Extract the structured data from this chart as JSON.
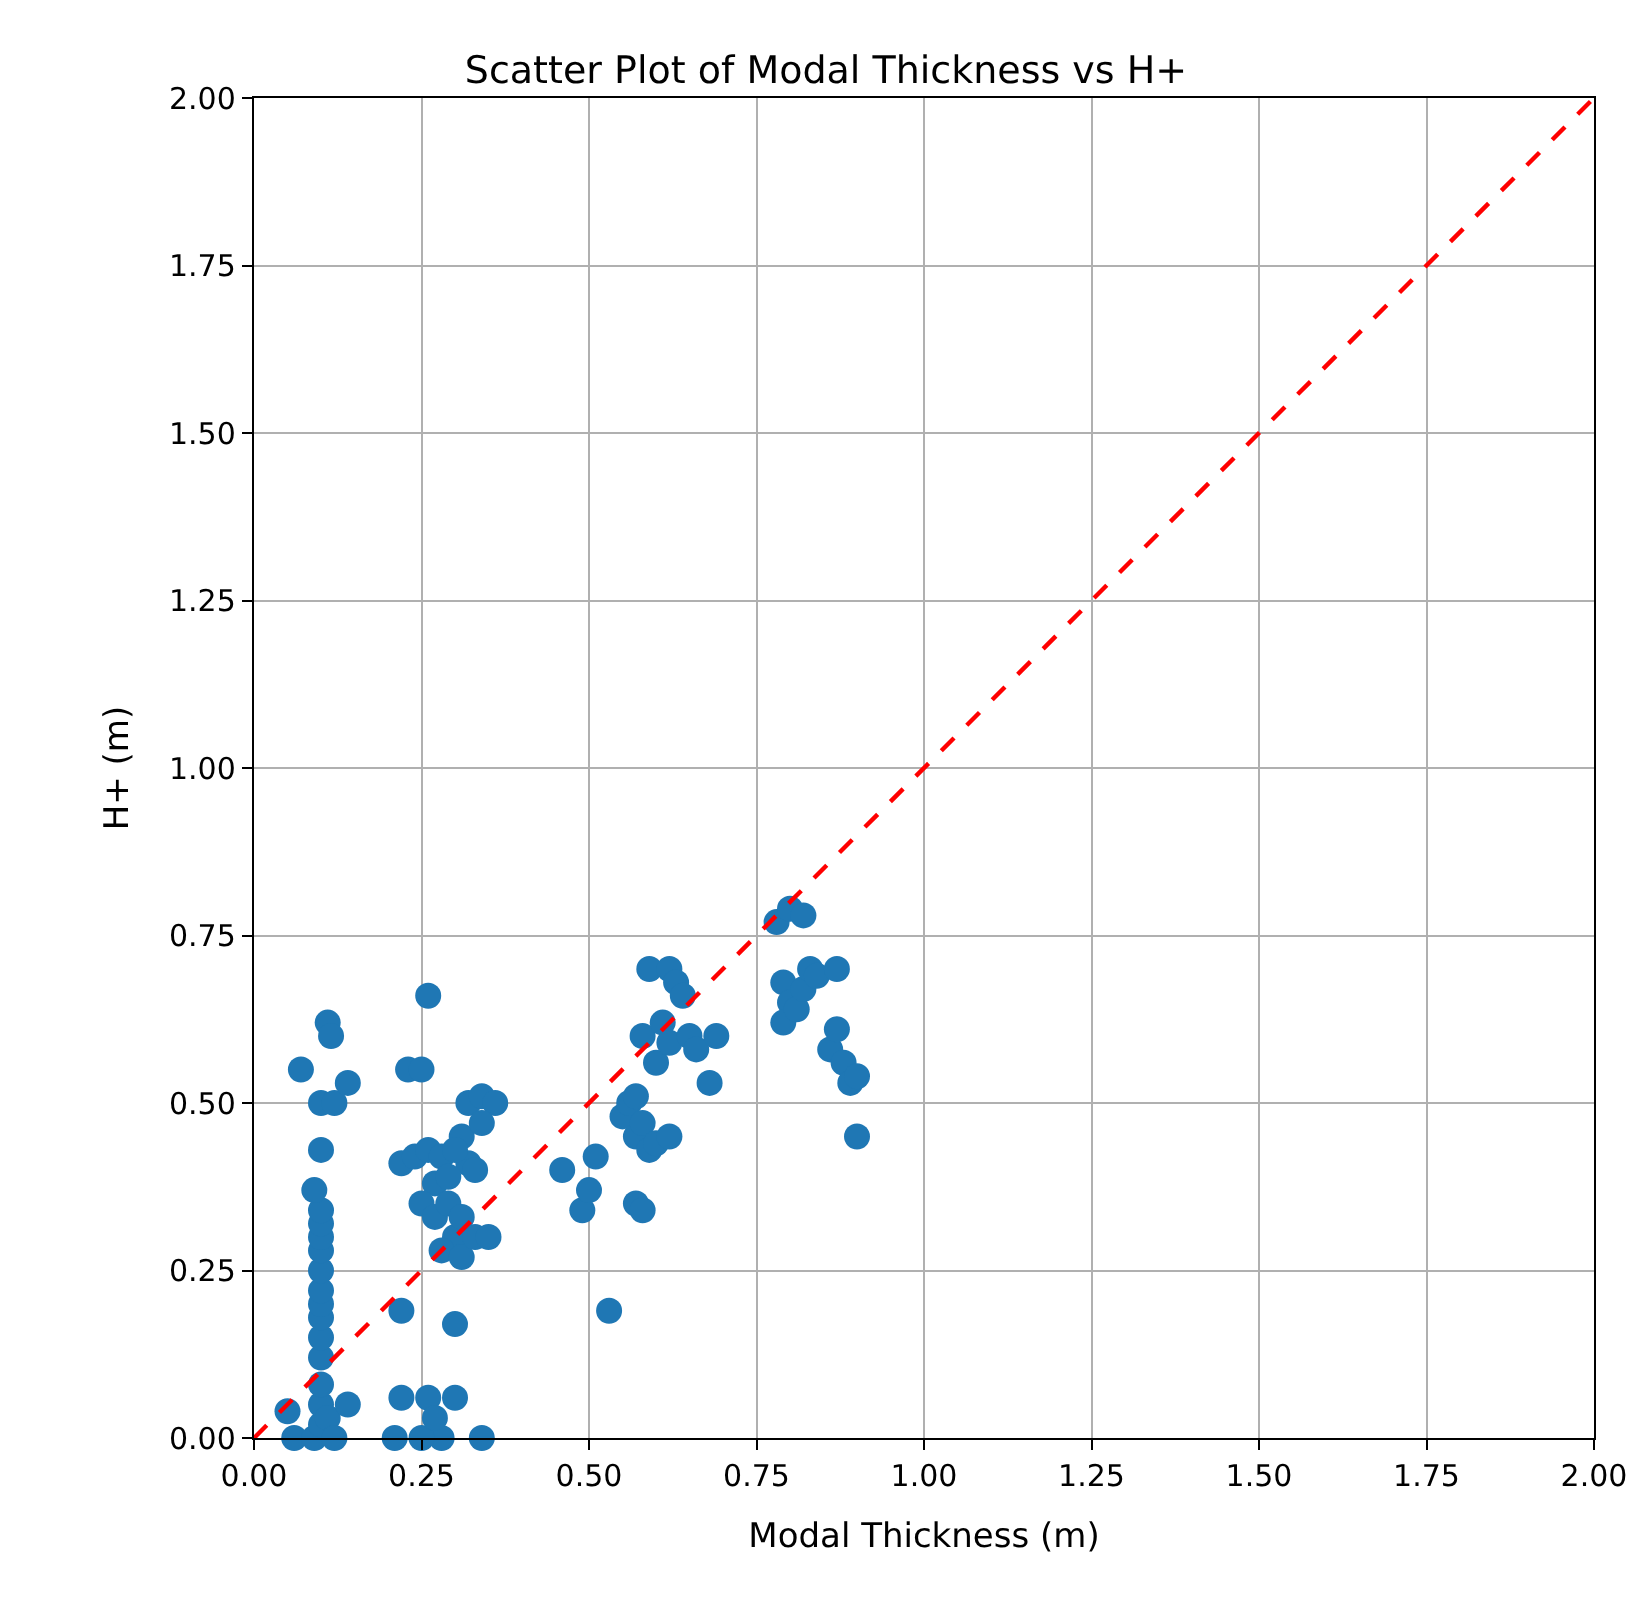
{
  "chart_data": {
    "type": "scatter",
    "title": "Scatter Plot of Modal Thickness vs H+",
    "xlabel": "Modal Thickness (m)",
    "ylabel": "H+ (m)",
    "xlim": [
      0,
      2
    ],
    "ylim": [
      0,
      2
    ],
    "xticks": [
      {
        "value": 0,
        "label": "0.00"
      },
      {
        "value": 0.25,
        "label": "0.25"
      },
      {
        "value": 0.5,
        "label": "0.50"
      },
      {
        "value": 0.75,
        "label": "0.75"
      },
      {
        "value": 1,
        "label": "1.00"
      },
      {
        "value": 1.25,
        "label": "1.25"
      },
      {
        "value": 1.5,
        "label": "1.50"
      },
      {
        "value": 1.75,
        "label": "1.75"
      },
      {
        "value": 2,
        "label": "2.00"
      }
    ],
    "yticks": [
      {
        "value": 0,
        "label": "0.00"
      },
      {
        "value": 0.25,
        "label": "0.25"
      },
      {
        "value": 0.5,
        "label": "0.50"
      },
      {
        "value": 0.75,
        "label": "0.75"
      },
      {
        "value": 1,
        "label": "1.00"
      },
      {
        "value": 1.25,
        "label": "1.25"
      },
      {
        "value": 1.5,
        "label": "1.50"
      },
      {
        "value": 1.75,
        "label": "1.75"
      },
      {
        "value": 2,
        "label": "2.00"
      }
    ],
    "grid": true,
    "marker": "circle",
    "series": [
      {
        "color": "#1f77b4",
        "x": [
          0.05,
          0.07,
          0.06,
          0.09,
          0.1,
          0.1,
          0.11,
          0.12,
          0.14,
          0.1,
          0.1,
          0.1,
          0.1,
          0.1,
          0.1,
          0.1,
          0.1,
          0.1,
          0.1,
          0.1,
          0.09,
          0.1,
          0.1,
          0.12,
          0.11,
          0.115,
          0.14,
          0.22,
          0.22,
          0.23,
          0.25,
          0.26,
          0.24,
          0.26,
          0.27,
          0.28,
          0.25,
          0.27,
          0.29,
          0.3,
          0.28,
          0.31,
          0.33,
          0.35,
          0.3,
          0.31,
          0.32,
          0.33,
          0.32,
          0.34,
          0.36,
          0.34,
          0.3,
          0.29,
          0.31,
          0.22,
          0.26,
          0.3,
          0.28,
          0.25,
          0.21,
          0.27,
          0.34,
          0.46,
          0.49,
          0.5,
          0.51,
          0.53,
          0.55,
          0.56,
          0.57,
          0.58,
          0.57,
          0.58,
          0.59,
          0.6,
          0.62,
          0.58,
          0.6,
          0.61,
          0.62,
          0.59,
          0.62,
          0.63,
          0.64,
          0.65,
          0.66,
          0.68,
          0.69,
          0.57,
          0.78,
          0.8,
          0.82,
          0.79,
          0.8,
          0.79,
          0.81,
          0.82,
          0.83,
          0.84,
          0.86,
          0.87,
          0.87,
          0.88,
          0.89,
          0.9,
          0.9
        ],
        "values": [
          0.04,
          0.55,
          0.0,
          0.0,
          0.02,
          0.05,
          0.03,
          0.0,
          0.05,
          0.08,
          0.12,
          0.15,
          0.18,
          0.2,
          0.22,
          0.25,
          0.28,
          0.3,
          0.32,
          0.34,
          0.37,
          0.43,
          0.5,
          0.5,
          0.62,
          0.6,
          0.53,
          0.19,
          0.41,
          0.55,
          0.55,
          0.66,
          0.42,
          0.43,
          0.38,
          0.42,
          0.35,
          0.33,
          0.35,
          0.3,
          0.28,
          0.27,
          0.3,
          0.3,
          0.17,
          0.45,
          0.41,
          0.4,
          0.5,
          0.51,
          0.5,
          0.47,
          0.43,
          0.39,
          0.33,
          0.06,
          0.06,
          0.06,
          0.0,
          0.0,
          0.0,
          0.03,
          0.0,
          0.4,
          0.34,
          0.37,
          0.42,
          0.19,
          0.48,
          0.5,
          0.45,
          0.47,
          0.35,
          0.34,
          0.43,
          0.44,
          0.45,
          0.6,
          0.56,
          0.62,
          0.59,
          0.7,
          0.7,
          0.68,
          0.66,
          0.6,
          0.58,
          0.53,
          0.6,
          0.51,
          0.77,
          0.79,
          0.78,
          0.68,
          0.65,
          0.62,
          0.64,
          0.67,
          0.7,
          0.69,
          0.58,
          0.7,
          0.61,
          0.56,
          0.53,
          0.54,
          0.45
        ]
      },
      {
        "type": "line",
        "color": "#ff0000",
        "line_style": "dashed",
        "marker": "none",
        "x": [
          0,
          2
        ],
        "values": [
          0,
          2
        ]
      }
    ]
  }
}
